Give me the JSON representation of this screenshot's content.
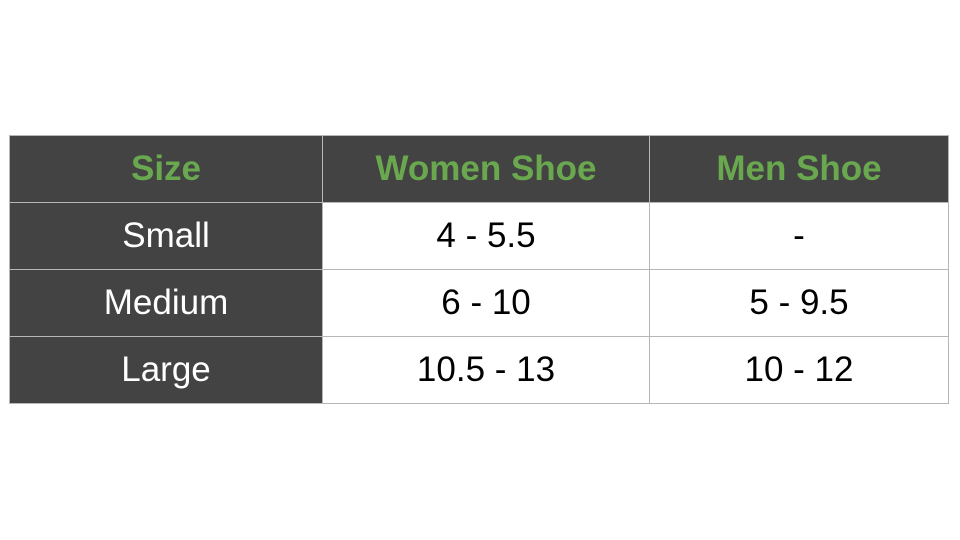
{
  "table": {
    "headers": [
      "Size",
      "Women Shoe",
      "Men Shoe"
    ],
    "rows": [
      [
        "Small",
        "4 - 5.5",
        "-"
      ],
      [
        "Medium",
        "6 - 10",
        "5 - 9.5"
      ],
      [
        "Large",
        "10.5 - 13",
        "10 - 12"
      ]
    ]
  },
  "colors": {
    "header_bg": "#434343",
    "header_text": "#6aa84f",
    "label_text": "#ffffff"
  }
}
